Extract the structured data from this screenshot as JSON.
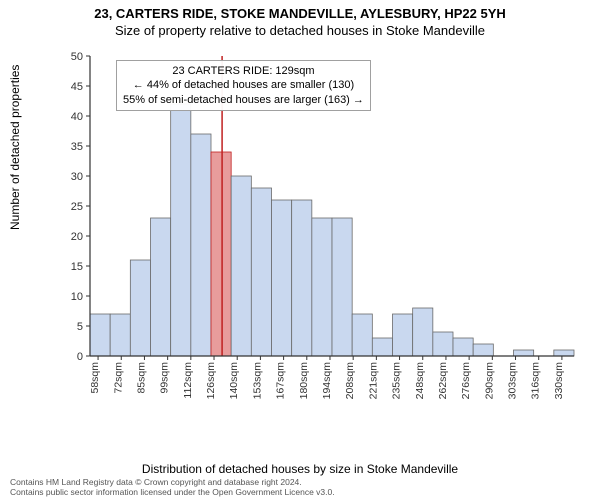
{
  "titles": {
    "main": "23, CARTERS RIDE, STOKE MANDEVILLE, AYLESBURY, HP22 5YH",
    "sub": "Size of property relative to detached houses in Stoke Mandeville"
  },
  "axes": {
    "x_label": "Distribution of detached houses by size in Stoke Mandeville",
    "y_label": "Number of detached properties",
    "y_ticks": [
      0,
      5,
      10,
      15,
      20,
      25,
      30,
      35,
      40,
      45,
      50
    ],
    "x_tick_labels": [
      "58sqm",
      "72sqm",
      "85sqm",
      "99sqm",
      "112sqm",
      "126sqm",
      "140sqm",
      "153sqm",
      "167sqm",
      "180sqm",
      "194sqm",
      "208sqm",
      "221sqm",
      "235sqm",
      "248sqm",
      "262sqm",
      "276sqm",
      "290sqm",
      "303sqm",
      "316sqm",
      "330sqm"
    ]
  },
  "chart": {
    "type": "histogram",
    "ylim": [
      0,
      50
    ],
    "bar_values": [
      7,
      7,
      16,
      23,
      42,
      37,
      34,
      30,
      28,
      26,
      26,
      23,
      23,
      7,
      3,
      7,
      8,
      4,
      3,
      2,
      0,
      1,
      0,
      1
    ],
    "highlight_index": 6,
    "bar_fill": "#c9d8ef",
    "bar_stroke": "#6a6a6a",
    "highlight_fill": "#e89c9c",
    "highlight_stroke": "#c02020",
    "ref_line_color": "#c02020",
    "background": "#ffffff",
    "axis_color": "#333333",
    "tick_color": "#333333",
    "tick_font_size": 11
  },
  "annotation": {
    "line1": "23 CARTERS RIDE: 129sqm",
    "line2": "← 44% of detached houses are smaller (130)",
    "line3": "55% of semi-detached houses are larger (163) →"
  },
  "footer": {
    "line1": "Contains HM Land Registry data © Crown copyright and database right 2024.",
    "line2": "Contains public sector information licensed under the Open Government Licence v3.0."
  }
}
